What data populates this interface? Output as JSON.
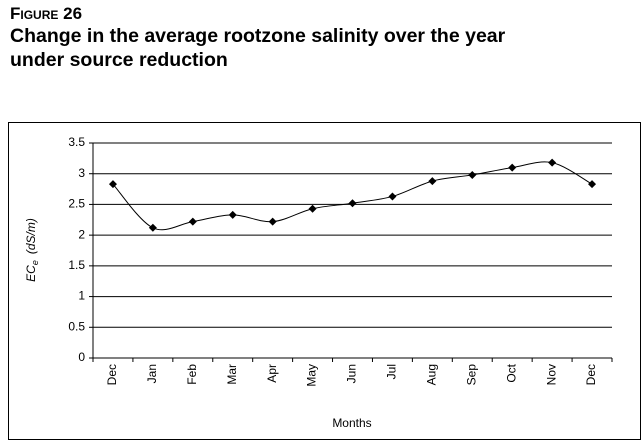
{
  "caption": "Figure 26",
  "chart_data": {
    "type": "line",
    "title": [
      "Change in the average rootzone salinity over the year",
      "under source reduction"
    ],
    "x_label": "Months",
    "y_label": {
      "main": "EC",
      "sub": "e",
      "unit": "(dS/m)"
    },
    "categories": [
      "Dec",
      "Jan",
      "Feb",
      "Mar",
      "Apr",
      "May",
      "Jun",
      "Jul",
      "Aug",
      "Sep",
      "Oct",
      "Nov",
      "Dec"
    ],
    "values": [
      2.83,
      2.12,
      2.22,
      2.33,
      2.22,
      2.43,
      2.52,
      2.63,
      2.88,
      2.98,
      3.1,
      3.18,
      2.83
    ],
    "color": "#000000",
    "ylim": [
      0,
      3.5
    ],
    "yticks": [
      0,
      0.5,
      1,
      1.5,
      2,
      2.5,
      3,
      3.5
    ],
    "grid": true,
    "smooth": true
  }
}
